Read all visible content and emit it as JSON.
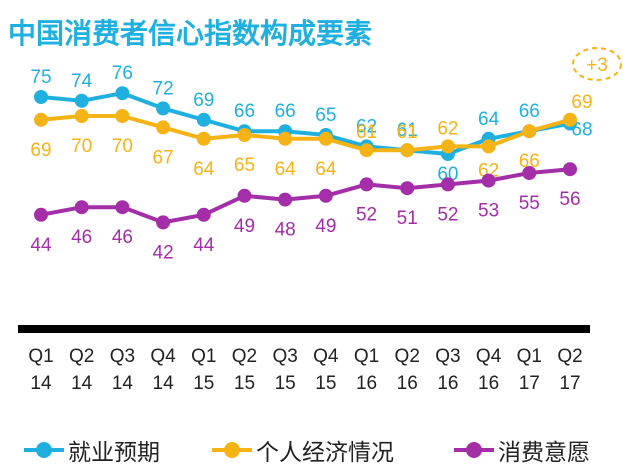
{
  "chart_data": {
    "type": "line",
    "title": "中国消费者信心指数构成要素",
    "categories": [
      [
        "Q1",
        "14"
      ],
      [
        "Q2",
        "14"
      ],
      [
        "Q3",
        "14"
      ],
      [
        "Q4",
        "14"
      ],
      [
        "Q1",
        "15"
      ],
      [
        "Q2",
        "15"
      ],
      [
        "Q3",
        "15"
      ],
      [
        "Q4",
        "15"
      ],
      [
        "Q1",
        "16"
      ],
      [
        "Q2",
        "16"
      ],
      [
        "Q3",
        "16"
      ],
      [
        "Q4",
        "16"
      ],
      [
        "Q1",
        "17"
      ],
      [
        "Q2",
        "17"
      ]
    ],
    "series": [
      {
        "name": "就业预期",
        "color": "#1fb0e0",
        "values": [
          75,
          74,
          76,
          72,
          69,
          66,
          66,
          65,
          62,
          61,
          60,
          64,
          66,
          68
        ]
      },
      {
        "name": "个人经济情况",
        "color": "#f5b316",
        "values": [
          69,
          70,
          70,
          67,
          64,
          65,
          64,
          64,
          61,
          61,
          62,
          62,
          66,
          69
        ]
      },
      {
        "name": "消费意愿",
        "color": "#a42ea8",
        "values": [
          44,
          46,
          46,
          42,
          44,
          49,
          48,
          49,
          52,
          51,
          52,
          53,
          55,
          56
        ]
      }
    ],
    "annotation": {
      "text": "+3",
      "color": "#f5b316"
    },
    "legend": "bottom",
    "grid": false
  }
}
